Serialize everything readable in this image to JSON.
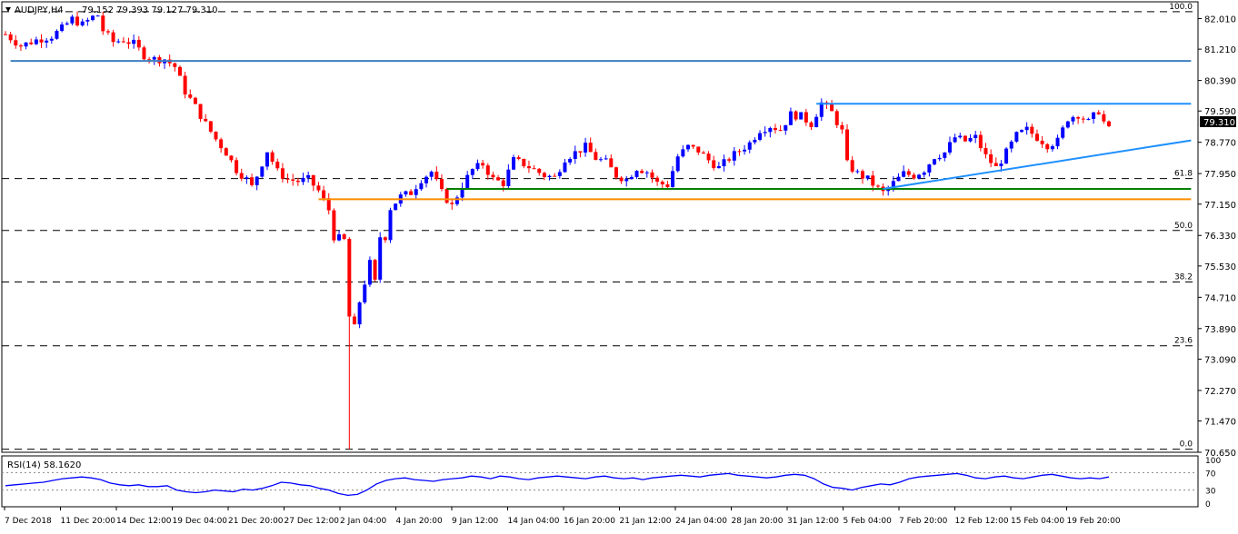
{
  "header": {
    "symbol": "AUDJPY,H4",
    "ohlc": "79.152 79.393 79.127 79.310"
  },
  "rsi_label": "RSI(14) 58.1620",
  "chart_data": [
    {
      "type": "candlestick",
      "symbol": "AUDJPY",
      "timeframe": "H4",
      "title": "AUDJPY,H4  79.152 79.393 79.127 79.310",
      "ylim": [
        70.65,
        82.45
      ],
      "y_ticks": [
        "82.010",
        "81.210",
        "80.390",
        "79.590",
        "78.770",
        "77.950",
        "77.150",
        "76.330",
        "75.530",
        "74.710",
        "73.890",
        "73.090",
        "72.270",
        "71.470",
        "70.650"
      ],
      "current_price": "79.310",
      "x_tick_labels": [
        "7 Dec 2018",
        "11 Dec 20:00",
        "14 Dec 12:00",
        "19 Dec 04:00",
        "21 Dec 20:00",
        "27 Dec 12:00",
        "2 Jan 04:00",
        "4 Jan 20:00",
        "9 Jan 12:00",
        "14 Jan 04:00",
        "16 Jan 20:00",
        "21 Jan 12:00",
        "24 Jan 04:00",
        "28 Jan 20:00",
        "31 Jan 12:00",
        "5 Feb 04:00",
        "7 Feb 20:00",
        "12 Feb 12:00",
        "15 Feb 04:00",
        "19 Feb 20:00"
      ],
      "fibonacci": [
        {
          "label": "100.0",
          "value": 82.19
        },
        {
          "label": "61.8",
          "value": 77.82
        },
        {
          "label": "50.0",
          "value": 76.46
        },
        {
          "label": "38.2",
          "value": 75.11
        },
        {
          "label": "23.6",
          "value": 73.44
        },
        {
          "label": "0.0",
          "value": 70.73
        }
      ],
      "price_path": [
        [
          0,
          81.6
        ],
        [
          3,
          81.3
        ],
        [
          6,
          81.45
        ],
        [
          9,
          81.55
        ],
        [
          11,
          81.75
        ],
        [
          13,
          82.0
        ],
        [
          15,
          81.85
        ],
        [
          17,
          82.05
        ],
        [
          18,
          82.1
        ],
        [
          19,
          81.7
        ],
        [
          21,
          81.4
        ],
        [
          23,
          81.45
        ],
        [
          25,
          81.35
        ],
        [
          27,
          81.05
        ],
        [
          29,
          80.95
        ],
        [
          31,
          80.95
        ],
        [
          33,
          80.75
        ],
        [
          35,
          80.1
        ],
        [
          37,
          79.7
        ],
        [
          39,
          79.25
        ],
        [
          41,
          78.85
        ],
        [
          43,
          78.5
        ],
        [
          45,
          78.05
        ],
        [
          47,
          77.8
        ],
        [
          48,
          77.6
        ],
        [
          49,
          77.9
        ],
        [
          51,
          78.55
        ],
        [
          53,
          78.0
        ],
        [
          55,
          77.8
        ],
        [
          57,
          77.75
        ],
        [
          59,
          77.8
        ],
        [
          61,
          77.5
        ],
        [
          63,
          77.0
        ],
        [
          64,
          76.3
        ],
        [
          66,
          76.2
        ],
        [
          67,
          74.2
        ],
        [
          68,
          73.9
        ],
        [
          69,
          74.6
        ],
        [
          71,
          75.6
        ],
        [
          72,
          75.1
        ],
        [
          73,
          76.3
        ],
        [
          74,
          76.3
        ],
        [
          75,
          77.05
        ],
        [
          77,
          77.35
        ],
        [
          79,
          77.45
        ],
        [
          81,
          77.8
        ],
        [
          83,
          78.0
        ],
        [
          85,
          77.45
        ],
        [
          87,
          77.1
        ],
        [
          89,
          77.65
        ],
        [
          91,
          78.05
        ],
        [
          93,
          78.2
        ],
        [
          95,
          77.8
        ],
        [
          97,
          77.7
        ],
        [
          99,
          78.3
        ],
        [
          101,
          78.2
        ],
        [
          103,
          78.05
        ],
        [
          105,
          77.9
        ],
        [
          107,
          77.85
        ],
        [
          109,
          78.35
        ],
        [
          111,
          78.5
        ],
        [
          113,
          78.65
        ],
        [
          115,
          78.35
        ],
        [
          117,
          78.25
        ],
        [
          119,
          77.9
        ],
        [
          121,
          77.8
        ],
        [
          123,
          78.1
        ],
        [
          125,
          78.0
        ],
        [
          127,
          77.7
        ],
        [
          129,
          77.65
        ],
        [
          131,
          78.4
        ],
        [
          133,
          78.65
        ],
        [
          135,
          78.55
        ],
        [
          137,
          78.3
        ],
        [
          139,
          78.1
        ],
        [
          141,
          78.35
        ],
        [
          143,
          78.55
        ],
        [
          145,
          78.75
        ],
        [
          147,
          79.1
        ],
        [
          149,
          79.2
        ],
        [
          151,
          79.1
        ],
        [
          153,
          79.5
        ],
        [
          155,
          79.45
        ],
        [
          157,
          79.25
        ],
        [
          159,
          79.8
        ],
        [
          161,
          79.55
        ],
        [
          163,
          79.05
        ],
        [
          164,
          78.2
        ],
        [
          166,
          77.95
        ],
        [
          168,
          77.8
        ],
        [
          170,
          77.55
        ],
        [
          171,
          77.45
        ],
        [
          173,
          77.7
        ],
        [
          175,
          77.95
        ],
        [
          177,
          77.9
        ],
        [
          179,
          78.05
        ],
        [
          181,
          78.4
        ],
        [
          183,
          78.5
        ],
        [
          185,
          78.9
        ],
        [
          187,
          78.8
        ],
        [
          189,
          78.9
        ],
        [
          191,
          78.4
        ],
        [
          193,
          78.1
        ],
        [
          195,
          78.5
        ],
        [
          197,
          78.95
        ],
        [
          199,
          79.1
        ],
        [
          201,
          78.9
        ],
        [
          203,
          78.7
        ],
        [
          205,
          78.8
        ],
        [
          207,
          79.4
        ],
        [
          209,
          79.5
        ],
        [
          211,
          79.3
        ],
        [
          213,
          79.6
        ],
        [
          214,
          79.3
        ],
        [
          215,
          79.1
        ]
      ],
      "annotations": [
        {
          "type": "horizontal",
          "value": 80.9,
          "color": "#3f7fbf",
          "from_index": 1,
          "to_index": 231
        },
        {
          "type": "horizontal",
          "value": 79.78,
          "color": "#1e90ff",
          "from_index": 158,
          "to_index": 231
        },
        {
          "type": "horizontal",
          "value": 77.55,
          "color": "#008000",
          "from_index": 86,
          "to_index": 231
        },
        {
          "type": "horizontal",
          "value": 77.28,
          "color": "#ff8c00",
          "from_index": 61,
          "to_index": 231
        },
        {
          "type": "trendline",
          "color": "#1e90ff",
          "from": [
            171,
            77.55
          ],
          "to": [
            231,
            78.82
          ]
        }
      ],
      "colors": {
        "up": "#0000ff",
        "down": "#ff0000",
        "grid": "#000000"
      }
    },
    {
      "type": "line",
      "name": "RSI(14)",
      "value": "58.1620",
      "ylim": [
        0,
        100
      ],
      "y_ticks": [
        "100",
        "70",
        "30",
        "0"
      ],
      "levels": [
        70,
        30
      ],
      "values": [
        40,
        42,
        44,
        46,
        48,
        52,
        56,
        58,
        60,
        58,
        54,
        46,
        42,
        40,
        42,
        38,
        38,
        40,
        30,
        26,
        24,
        26,
        30,
        28,
        26,
        32,
        30,
        34,
        40,
        48,
        46,
        42,
        40,
        34,
        30,
        22,
        18,
        20,
        30,
        44,
        52,
        56,
        58,
        54,
        52,
        50,
        54,
        56,
        58,
        62,
        60,
        56,
        62,
        60,
        56,
        54,
        58,
        60,
        62,
        60,
        58,
        56,
        60,
        62,
        58,
        56,
        58,
        54,
        58,
        60,
        62,
        64,
        62,
        60,
        64,
        66,
        68,
        64,
        62,
        60,
        58,
        60,
        64,
        66,
        64,
        56,
        44,
        36,
        34,
        30,
        36,
        40,
        44,
        42,
        48,
        56,
        60,
        62,
        64,
        66,
        68,
        64,
        58,
        56,
        60,
        62,
        58,
        56,
        60,
        64,
        66,
        62,
        58,
        56,
        58,
        56,
        60
      ]
    }
  ]
}
